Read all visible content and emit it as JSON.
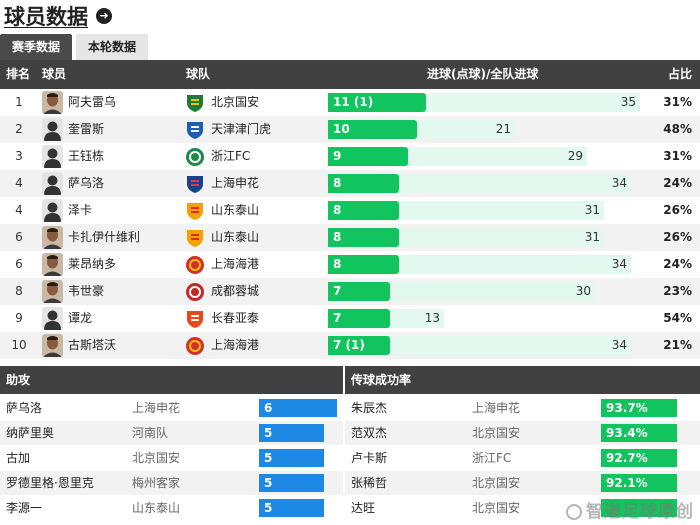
{
  "page": {
    "title": "球员数据"
  },
  "tabs": [
    {
      "label": "赛季数据"
    },
    {
      "label": "本轮数据"
    }
  ],
  "headers": {
    "rank": "排名",
    "player": "球员",
    "team": "球队",
    "goals": "进球(点球)/全队进球",
    "ratio": "占比"
  },
  "colors": {
    "bar": "#12c45e",
    "track": "#e3f8ee",
    "assist": "#1e88e5",
    "pass": "#12c45e",
    "header": "#414141"
  },
  "scorers": [
    {
      "rank": "1",
      "name": "阿夫雷乌",
      "team": "北京国安",
      "logo": "guoan-logo",
      "goals": 11,
      "label": "11 (1)",
      "total": 35,
      "pct": "31%",
      "avatar": "photo"
    },
    {
      "rank": "2",
      "name": "奎雷斯",
      "team": "天津津门虎",
      "logo": "tianjin-logo",
      "goals": 10,
      "label": "10",
      "total": 21,
      "pct": "48%",
      "avatar": "silhouette"
    },
    {
      "rank": "3",
      "name": "王钰栋",
      "team": "浙江FC",
      "logo": "zhejiang-logo",
      "goals": 9,
      "label": "9",
      "total": 29,
      "pct": "31%",
      "avatar": "silhouette"
    },
    {
      "rank": "4",
      "name": "萨乌洛",
      "team": "上海申花",
      "logo": "shenhua-logo",
      "goals": 8,
      "label": "8",
      "total": 34,
      "pct": "24%",
      "avatar": "silhouette"
    },
    {
      "rank": "4",
      "name": "泽卡",
      "team": "山东泰山",
      "logo": "taishan-logo",
      "goals": 8,
      "label": "8",
      "total": 31,
      "pct": "26%",
      "avatar": "silhouette"
    },
    {
      "rank": "6",
      "name": "卡扎伊什维利",
      "team": "山东泰山",
      "logo": "taishan-logo",
      "goals": 8,
      "label": "8",
      "total": 31,
      "pct": "26%",
      "avatar": "photo"
    },
    {
      "rank": "6",
      "name": "莱昂纳多",
      "team": "上海海港",
      "logo": "haigang-logo",
      "goals": 8,
      "label": "8",
      "total": 34,
      "pct": "24%",
      "avatar": "photo"
    },
    {
      "rank": "8",
      "name": "韦世豪",
      "team": "成都蓉城",
      "logo": "chengdu-logo",
      "goals": 7,
      "label": "7",
      "total": 30,
      "pct": "23%",
      "avatar": "photo"
    },
    {
      "rank": "9",
      "name": "谭龙",
      "team": "长春亚泰",
      "logo": "yatai-logo",
      "goals": 7,
      "label": "7",
      "total": 13,
      "pct": "54%",
      "avatar": "silhouette"
    },
    {
      "rank": "10",
      "name": "古斯塔沃",
      "team": "上海海港",
      "logo": "haigang-logo",
      "goals": 7,
      "label": "7 (1)",
      "total": 34,
      "pct": "21%",
      "avatar": "photo"
    }
  ],
  "assists": {
    "title": "助攻",
    "rows": [
      {
        "name": "萨乌洛",
        "team": "上海申花",
        "value": 6,
        "label": "6"
      },
      {
        "name": "纳萨里奥",
        "team": "河南队",
        "value": 5,
        "label": "5"
      },
      {
        "name": "古加",
        "team": "北京国安",
        "value": 5,
        "label": "5"
      },
      {
        "name": "罗德里格·恩里克",
        "team": "梅州客家",
        "value": 5,
        "label": "5"
      },
      {
        "name": "李源一",
        "team": "山东泰山",
        "value": 5,
        "label": "5"
      }
    ]
  },
  "passing": {
    "title": "传球成功率",
    "rows": [
      {
        "name": "朱辰杰",
        "team": "上海申花",
        "value": 93.7,
        "label": "93.7%"
      },
      {
        "name": "范双杰",
        "team": "北京国安",
        "value": 93.4,
        "label": "93.4%"
      },
      {
        "name": "卢卡斯",
        "team": "浙江FC",
        "value": 92.7,
        "label": "92.7%"
      },
      {
        "name": "张稀哲",
        "team": "北京国安",
        "value": 92.1,
        "label": "92.1%"
      },
      {
        "name": "达旺",
        "team": "北京国安",
        "value": 92.0,
        "label": ""
      }
    ]
  },
  "watermark": "智道足球原创"
}
